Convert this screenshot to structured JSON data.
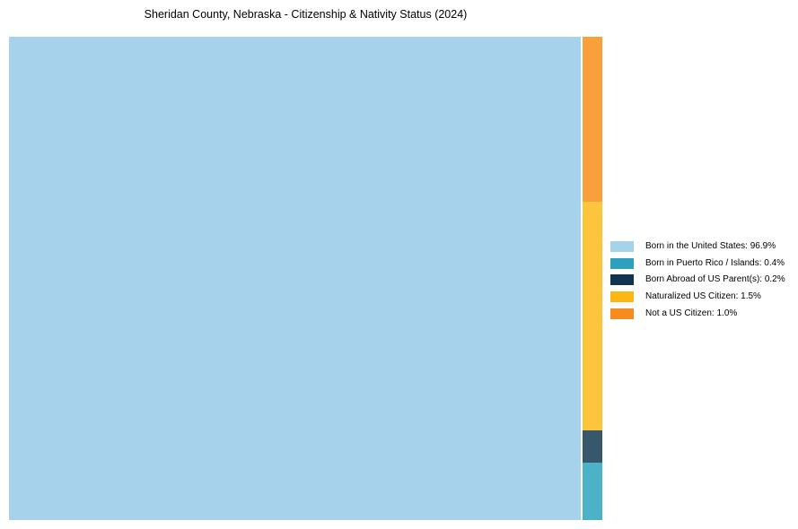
{
  "page": {
    "background_color": "#ffffff"
  },
  "chart_data": {
    "type": "treemap",
    "title": "Sheridan County, Nebraska - Citizenship & Nativity Status (2024)",
    "unit": "%",
    "categories": [
      "Born in the United States",
      "Born in Puerto Rico / Islands",
      "Born Abroad of US Parent(s)",
      "Naturalized US Citizen",
      "Not a US Citizen"
    ],
    "values": [
      96.9,
      0.4,
      0.2,
      1.5,
      1.0
    ],
    "tile_colors": [
      "#a6d3eb",
      "#4bb2c8",
      "#36576c",
      "#fdc53c",
      "#f9a03c"
    ],
    "layout_hints": {
      "legend_position": "right",
      "grid": false,
      "axes": false,
      "big_tile_category": "Born in the United States",
      "right_column_order_top_to_bottom": [
        "Not a US Citizen",
        "Naturalized US Citizen",
        "Born Abroad of US Parent(s)",
        "Born in Puerto Rico / Islands"
      ]
    },
    "legend": {
      "entries": [
        {
          "label": "Born in the United States: 96.9%",
          "swatch_color": "#a5d3ea"
        },
        {
          "label": "Born in Puerto Rico / Islands: 0.4%",
          "swatch_color": "#2ca0be"
        },
        {
          "label": "Born Abroad of US Parent(s): 0.2%",
          "swatch_color": "#0f3350"
        },
        {
          "label": "Naturalized US Citizen: 1.5%",
          "swatch_color": "#fcb715"
        },
        {
          "label": "Not a US Citizen: 1.0%",
          "swatch_color": "#f68b1f"
        }
      ]
    }
  }
}
